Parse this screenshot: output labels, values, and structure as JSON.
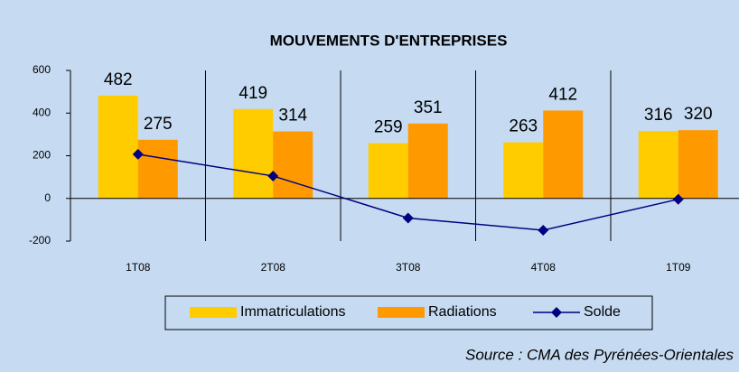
{
  "chart_data": {
    "type": "bar",
    "title": "MOUVEMENTS D'ENTREPRISES",
    "categories": [
      "1T08",
      "2T08",
      "3T08",
      "4T08",
      "1T09"
    ],
    "series": [
      {
        "name": "Immatriculations",
        "type": "bar",
        "color": "#ffcc00",
        "values": [
          482,
          419,
          259,
          263,
          316
        ]
      },
      {
        "name": "Radiations",
        "type": "bar",
        "color": "#ff9900",
        "values": [
          275,
          314,
          351,
          412,
          320
        ]
      },
      {
        "name": "Solde",
        "type": "line",
        "color": "#000080",
        "values": [
          207,
          105,
          -92,
          -149,
          -4
        ]
      }
    ],
    "ylim": [
      -200,
      600
    ],
    "yticks": [
      -200,
      0,
      200,
      400,
      600
    ],
    "legend": "bottom",
    "source": "Source : CMA des Pyrénées-Orientales"
  }
}
